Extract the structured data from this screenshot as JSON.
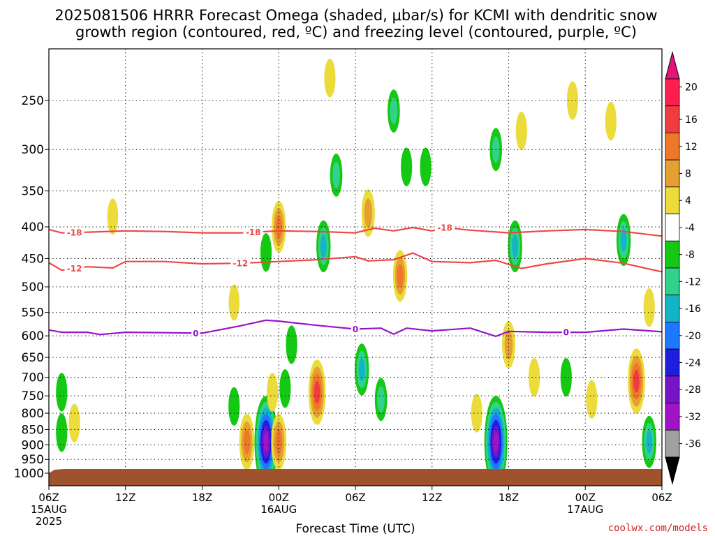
{
  "title_line1": "2025081506 HRRR Forecast Omega (shaded, μbar/s) for KCMI with dendritic snow",
  "title_line2": "growth region (contoured, red, ºC) and freezing level (contoured, purple, ºC)",
  "xlabel": "Forecast Time (UTC)",
  "credit": "coolwx.com/models",
  "chart_data": {
    "type": "time-height cross section",
    "xlabel": "Forecast Time (UTC)",
    "y_scale": "pressure (reversed)",
    "ylim_hpa": [
      1000,
      200
    ],
    "xlim_hours": [
      0,
      48
    ],
    "grid": true,
    "y_ticks": [
      250,
      300,
      350,
      400,
      450,
      500,
      550,
      600,
      650,
      700,
      750,
      800,
      850,
      900,
      950,
      1000
    ],
    "x_ticks": [
      {
        "hour": 0,
        "label": "06Z",
        "sub": "15AUG",
        "sub2": "2025"
      },
      {
        "hour": 6,
        "label": "12Z",
        "sub": "",
        "sub2": ""
      },
      {
        "hour": 12,
        "label": "18Z",
        "sub": "",
        "sub2": ""
      },
      {
        "hour": 18,
        "label": "00Z",
        "sub": "16AUG",
        "sub2": ""
      },
      {
        "hour": 24,
        "label": "06Z",
        "sub": "",
        "sub2": ""
      },
      {
        "hour": 30,
        "label": "12Z",
        "sub": "",
        "sub2": ""
      },
      {
        "hour": 36,
        "label": "18Z",
        "sub": "",
        "sub2": ""
      },
      {
        "hour": 42,
        "label": "00Z",
        "sub": "17AUG",
        "sub2": ""
      },
      {
        "hour": 48,
        "label": "06Z",
        "sub": "",
        "sub2": ""
      }
    ],
    "colorbar": {
      "labels": [
        "20",
        "16",
        "12",
        "8",
        "4",
        "-4",
        "-8",
        "-12",
        "-16",
        "-20",
        "-24",
        "-28",
        "-32",
        "-36"
      ],
      "colors": [
        "#ff1e50",
        "#f03c3c",
        "#ee7828",
        "#e6a032",
        "#ebdc3c",
        "#ffffff",
        "#14c814",
        "#32d28c",
        "#14b4c8",
        "#1e78ff",
        "#1e1ede",
        "#7814c8",
        "#a014c8",
        "#a0a0a0"
      ],
      "top_arrow_color": "#e6147a",
      "bottom_arrow_color": "#000000"
    },
    "contours": [
      {
        "name": "-18",
        "color": "#f04646",
        "level_c": -18,
        "points": [
          [
            0,
            404
          ],
          [
            1,
            409
          ],
          [
            3,
            408
          ],
          [
            6,
            406
          ],
          [
            9,
            407
          ],
          [
            12,
            409
          ],
          [
            15,
            409
          ],
          [
            18,
            406
          ],
          [
            21,
            407
          ],
          [
            24,
            409
          ],
          [
            25.5,
            402
          ],
          [
            27,
            406
          ],
          [
            28.5,
            401
          ],
          [
            30,
            406
          ],
          [
            31,
            401
          ],
          [
            33,
            405
          ],
          [
            36,
            409
          ],
          [
            39,
            406
          ],
          [
            42,
            404
          ],
          [
            45,
            407
          ],
          [
            48,
            414
          ]
        ],
        "labels_at_hours": [
          2,
          16,
          31
        ]
      },
      {
        "name": "-12",
        "color": "#f04646",
        "level_c": -12,
        "points": [
          [
            0,
            457
          ],
          [
            1,
            470
          ],
          [
            3,
            464
          ],
          [
            5,
            466
          ],
          [
            6,
            455
          ],
          [
            9,
            455
          ],
          [
            12,
            459
          ],
          [
            15,
            458
          ],
          [
            18,
            455
          ],
          [
            21,
            452
          ],
          [
            24,
            447
          ],
          [
            25,
            454
          ],
          [
            27,
            452
          ],
          [
            28.5,
            441
          ],
          [
            30,
            455
          ],
          [
            33,
            457
          ],
          [
            35,
            453
          ],
          [
            37,
            467
          ],
          [
            39,
            459
          ],
          [
            42,
            450
          ],
          [
            45,
            458
          ],
          [
            48,
            473
          ]
        ],
        "labels_at_hours": [
          2,
          15
        ]
      },
      {
        "name": "0",
        "color": "#9614c8",
        "level_c": 0,
        "points": [
          [
            0,
            587
          ],
          [
            1,
            592
          ],
          [
            3,
            592
          ],
          [
            4,
            597
          ],
          [
            6,
            592
          ],
          [
            9,
            593
          ],
          [
            12,
            594
          ],
          [
            15,
            578
          ],
          [
            17,
            566
          ],
          [
            18,
            568
          ],
          [
            21,
            577
          ],
          [
            24,
            585
          ],
          [
            26,
            583
          ],
          [
            27,
            596
          ],
          [
            28,
            583
          ],
          [
            30,
            589
          ],
          [
            33,
            583
          ],
          [
            35,
            601
          ],
          [
            36,
            590
          ],
          [
            39,
            592
          ],
          [
            42,
            592
          ],
          [
            45,
            585
          ],
          [
            48,
            591
          ]
        ],
        "labels_at_hours": [
          11.5,
          24,
          40.5
        ]
      }
    ],
    "shaded_blobs": [
      {
        "hour": 1,
        "hpa": 740,
        "value": -6
      },
      {
        "hour": 1,
        "hpa": 860,
        "value": -6
      },
      {
        "hour": 2,
        "hpa": 830,
        "value": 6
      },
      {
        "hour": 5,
        "hpa": 385,
        "value": 5
      },
      {
        "hour": 14.5,
        "hpa": 530,
        "value": 5
      },
      {
        "hour": 14.5,
        "hpa": 780,
        "value": -6
      },
      {
        "hour": 15.5,
        "hpa": 890,
        "value": 14
      },
      {
        "hour": 17,
        "hpa": 890,
        "value": -30
      },
      {
        "hour": 17,
        "hpa": 440,
        "value": -6
      },
      {
        "hour": 17.5,
        "hpa": 740,
        "value": 6
      },
      {
        "hour": 18,
        "hpa": 890,
        "value": 14
      },
      {
        "hour": 18,
        "hpa": 400,
        "value": 12
      },
      {
        "hour": 18.5,
        "hpa": 730,
        "value": -6
      },
      {
        "hour": 19,
        "hpa": 620,
        "value": -6
      },
      {
        "hour": 21,
        "hpa": 740,
        "value": 18
      },
      {
        "hour": 21.5,
        "hpa": 430,
        "value": -12
      },
      {
        "hour": 22,
        "hpa": 230,
        "value": 6
      },
      {
        "hour": 22.5,
        "hpa": 330,
        "value": -8
      },
      {
        "hour": 24.5,
        "hpa": 680,
        "value": -12
      },
      {
        "hour": 25,
        "hpa": 380,
        "value": 10
      },
      {
        "hour": 26,
        "hpa": 760,
        "value": -8
      },
      {
        "hour": 27,
        "hpa": 260,
        "value": -8
      },
      {
        "hour": 27.5,
        "hpa": 480,
        "value": 12
      },
      {
        "hour": 28,
        "hpa": 320,
        "value": -6
      },
      {
        "hour": 29.5,
        "hpa": 320,
        "value": -6
      },
      {
        "hour": 33.5,
        "hpa": 800,
        "value": 6
      },
      {
        "hour": 35,
        "hpa": 300,
        "value": -8
      },
      {
        "hour": 35,
        "hpa": 890,
        "value": -30
      },
      {
        "hour": 36,
        "hpa": 620,
        "value": 10
      },
      {
        "hour": 36.5,
        "hpa": 430,
        "value": -12
      },
      {
        "hour": 37,
        "hpa": 280,
        "value": 6
      },
      {
        "hour": 38,
        "hpa": 700,
        "value": 6
      },
      {
        "hour": 40.5,
        "hpa": 700,
        "value": -6
      },
      {
        "hour": 41,
        "hpa": 250,
        "value": 6
      },
      {
        "hour": 42.5,
        "hpa": 760,
        "value": 6
      },
      {
        "hour": 44,
        "hpa": 270,
        "value": 6
      },
      {
        "hour": 45,
        "hpa": 420,
        "value": -12
      },
      {
        "hour": 46,
        "hpa": 710,
        "value": 18
      },
      {
        "hour": 47,
        "hpa": 540,
        "value": 6
      },
      {
        "hour": 47,
        "hpa": 890,
        "value": -12
      }
    ],
    "surface_fill_color": "#a0522d"
  }
}
